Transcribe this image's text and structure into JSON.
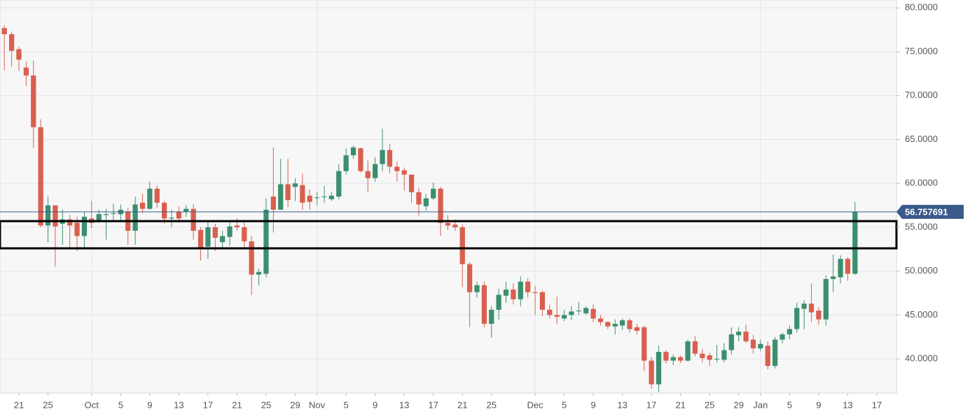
{
  "chart_data": {
    "type": "candlestick",
    "x": [
      -2,
      -1,
      0,
      1,
      2,
      3,
      4,
      5,
      6,
      7,
      8,
      9,
      10,
      11,
      12,
      13,
      14,
      15,
      16,
      17,
      18,
      19,
      20,
      21,
      22,
      23,
      24,
      25,
      26,
      27,
      28,
      29,
      30,
      31,
      32,
      33,
      34,
      35,
      36,
      37,
      38,
      39,
      40,
      41,
      42,
      43,
      44,
      45,
      46,
      47,
      48,
      49,
      50,
      51,
      52,
      53,
      54,
      55,
      56,
      57,
      58,
      59,
      60,
      61,
      62,
      63,
      64,
      65,
      66,
      67,
      68,
      69,
      70,
      71,
      72,
      73,
      74,
      75,
      76,
      77,
      78,
      79,
      80,
      81,
      82,
      83,
      84,
      85,
      86,
      87,
      88,
      89,
      90,
      91,
      92,
      93,
      94,
      95,
      96,
      97,
      98,
      99,
      100,
      101,
      102,
      103,
      104,
      105,
      106,
      107,
      108,
      109,
      110,
      111,
      112,
      113,
      114,
      115
    ],
    "open": [
      77.7,
      77.0,
      75.3,
      73.2,
      72.3,
      66.4,
      55.2,
      57.5,
      55.4,
      55.9,
      55.5,
      54.0,
      56.0,
      55.8,
      56.4,
      56.6,
      56.5,
      56.8,
      54.6,
      57.8,
      57.1,
      59.4,
      57.8,
      56.0,
      56.8,
      56.8,
      57.1,
      54.7,
      52.8,
      55.0,
      53.3,
      53.9,
      55.2,
      55.0,
      53.4,
      49.6,
      49.7,
      58.5,
      57.0,
      59.9,
      59.6,
      59.8,
      58.6,
      58.4,
      58.5,
      58.2,
      58.5,
      61.4,
      63.2,
      64.0,
      61.4,
      60.6,
      62.2,
      63.8,
      61.9,
      61.5,
      61.0,
      59.0,
      57.4,
      58.3,
      59.4,
      55.5,
      55.3,
      55.0,
      50.8,
      47.6,
      48.4,
      44.0,
      45.6,
      47.2,
      47.9,
      46.8,
      48.8,
      47.6,
      47.6,
      45.6,
      45.0,
      44.6,
      45.0,
      45.5,
      45.2,
      45.7,
      44.6,
      44.2,
      43.7,
      43.8,
      44.4,
      43.6,
      43.6,
      39.8,
      37.1,
      40.8,
      39.8,
      40.2,
      39.8,
      42.0,
      40.6,
      40.4,
      40.0,
      39.9,
      41.0,
      42.7,
      43.1,
      42.2,
      41.2,
      41.5,
      39.2,
      42.2,
      42.8,
      43.4,
      45.7,
      46.3,
      45.5,
      44.5,
      49.1,
      49.3,
      51.4,
      49.7
    ],
    "high": [
      78.0,
      77.3,
      75.6,
      73.9,
      74.0,
      67.3,
      58.5,
      57.5,
      57.0,
      56.4,
      56.2,
      56.8,
      58.0,
      57.0,
      57.1,
      57.7,
      57.6,
      57.2,
      58.5,
      58.8,
      60.2,
      59.8,
      58.0,
      57.0,
      57.4,
      57.5,
      57.6,
      55.0,
      55.6,
      55.4,
      54.6,
      55.8,
      56.0,
      55.6,
      54.0,
      50.3,
      58.3,
      64.1,
      62.8,
      62.8,
      60.6,
      61.1,
      59.3,
      59.0,
      59.7,
      59.0,
      62.2,
      64.0,
      64.3,
      64.1,
      62.6,
      63.0,
      66.2,
      64.5,
      62.5,
      61.8,
      61.0,
      59.5,
      58.8,
      60.1,
      59.6,
      56.4,
      55.9,
      55.3,
      51.0,
      48.8,
      48.8,
      46.0,
      48.0,
      48.8,
      48.6,
      49.4,
      49.2,
      48.3,
      47.8,
      46.2,
      47.1,
      45.6,
      46.0,
      46.5,
      46.0,
      46.2,
      45.0,
      44.3,
      44.5,
      44.6,
      44.6,
      44.0,
      43.8,
      40.2,
      41.5,
      41.0,
      40.5,
      40.4,
      42.2,
      42.6,
      41.1,
      40.7,
      41.6,
      41.8,
      43.6,
      43.6,
      43.9,
      42.7,
      42.2,
      42.0,
      42.5,
      43.0,
      43.8,
      46.4,
      46.7,
      48.6,
      45.9,
      49.5,
      51.9,
      51.8,
      51.6,
      57.9
    ],
    "low": [
      72.9,
      73.3,
      72.8,
      71.1,
      64.0,
      55.0,
      53.3,
      50.5,
      53.0,
      52.7,
      52.3,
      52.7,
      54.9,
      55.5,
      53.6,
      55.6,
      55.8,
      53.0,
      53.0,
      56.6,
      57.0,
      57.2,
      55.4,
      55.0,
      55.5,
      56.2,
      53.6,
      51.2,
      51.4,
      52.3,
      52.7,
      52.9,
      54.6,
      52.7,
      47.3,
      48.4,
      49.3,
      54.4,
      57.0,
      57.3,
      58.0,
      57.0,
      57.0,
      57.5,
      57.8,
      58.0,
      58.2,
      61.0,
      62.8,
      61.2,
      59.0,
      60.2,
      61.4,
      61.2,
      60.2,
      59.2,
      57.8,
      56.3,
      56.9,
      58.1,
      54.0,
      54.7,
      54.6,
      48.2,
      43.6,
      47.0,
      43.6,
      42.4,
      44.5,
      46.4,
      46.2,
      46.0,
      47.0,
      45.0,
      44.9,
      44.6,
      44.0,
      44.3,
      44.4,
      45.0,
      45.0,
      44.2,
      43.8,
      43.4,
      42.8,
      43.3,
      43.0,
      42.8,
      38.6,
      36.6,
      36.2,
      39.5,
      39.3,
      39.5,
      39.7,
      40.3,
      39.6,
      39.2,
      39.6,
      39.6,
      40.5,
      42.0,
      41.8,
      40.6,
      40.9,
      38.8,
      38.9,
      41.8,
      42.2,
      43.0,
      43.4,
      44.2,
      43.9,
      43.8,
      47.6,
      48.6,
      48.9,
      49.6
    ],
    "close": [
      77.0,
      75.1,
      74.1,
      72.3,
      66.4,
      55.2,
      57.5,
      55.1,
      55.9,
      55.2,
      54.0,
      56.2,
      55.5,
      56.5,
      56.5,
      56.6,
      57.0,
      54.6,
      57.6,
      57.1,
      59.4,
      57.8,
      56.0,
      56.1,
      56.0,
      57.1,
      54.6,
      52.7,
      55.0,
      53.8,
      54.0,
      55.1,
      55.0,
      53.4,
      49.6,
      49.9,
      57.0,
      57.0,
      59.9,
      58.1,
      60.0,
      57.8,
      57.9,
      58.4,
      58.5,
      58.6,
      61.4,
      63.2,
      64.1,
      61.4,
      60.6,
      62.2,
      63.8,
      61.9,
      61.4,
      61.0,
      59.0,
      57.6,
      58.3,
      59.4,
      55.5,
      55.2,
      55.0,
      50.8,
      47.6,
      48.4,
      44.0,
      45.6,
      47.3,
      47.9,
      46.8,
      48.8,
      47.6,
      47.5,
      45.6,
      45.0,
      44.8,
      45.0,
      45.4,
      45.5,
      45.8,
      44.6,
      44.2,
      43.7,
      44.0,
      44.4,
      43.4,
      43.2,
      39.8,
      37.1,
      40.8,
      39.8,
      40.2,
      39.8,
      42.0,
      40.6,
      40.1,
      39.9,
      40.0,
      41.0,
      42.8,
      43.1,
      42.0,
      41.2,
      41.7,
      39.2,
      42.2,
      42.8,
      43.4,
      45.8,
      46.3,
      45.3,
      44.5,
      49.1,
      49.4,
      51.4,
      49.7,
      56.757691
    ],
    "up_color": "#3b8f6f",
    "down_color": "#d95f4e",
    "xlim": [
      -2.6,
      120.7
    ],
    "xticks": [
      {
        "value": 0,
        "label": "21"
      },
      {
        "value": 4,
        "label": "25"
      },
      {
        "value": 10,
        "label": "Oct"
      },
      {
        "value": 14,
        "label": "5"
      },
      {
        "value": 18,
        "label": "9"
      },
      {
        "value": 22,
        "label": "13"
      },
      {
        "value": 26,
        "label": "17"
      },
      {
        "value": 30,
        "label": "21"
      },
      {
        "value": 34,
        "label": "25"
      },
      {
        "value": 38,
        "label": "29"
      },
      {
        "value": 41,
        "label": "Nov"
      },
      {
        "value": 45,
        "label": "5"
      },
      {
        "value": 49,
        "label": "9"
      },
      {
        "value": 53,
        "label": "13"
      },
      {
        "value": 57,
        "label": "17"
      },
      {
        "value": 61,
        "label": "21"
      },
      {
        "value": 65,
        "label": "25"
      },
      {
        "value": 71,
        "label": "Dec"
      },
      {
        "value": 75,
        "label": "5"
      },
      {
        "value": 79,
        "label": "9"
      },
      {
        "value": 83,
        "label": "13"
      },
      {
        "value": 87,
        "label": "17"
      },
      {
        "value": 91,
        "label": "21"
      },
      {
        "value": 95,
        "label": "25"
      },
      {
        "value": 99,
        "label": "29"
      },
      {
        "value": 102,
        "label": "Jan"
      },
      {
        "value": 106,
        "label": "5"
      },
      {
        "value": 110,
        "label": "9"
      },
      {
        "value": 114,
        "label": "13"
      },
      {
        "value": 118,
        "label": "17"
      }
    ],
    "x_grid": [
      10,
      41,
      71,
      102
    ],
    "ylim": [
      36.1,
      80.9
    ],
    "yticks": [
      {
        "value": 40,
        "label": "40.0000"
      },
      {
        "value": 45,
        "label": "45.0000"
      },
      {
        "value": 50,
        "label": "50.0000"
      },
      {
        "value": 55,
        "label": "55.0000"
      },
      {
        "value": 60,
        "label": "60.0000"
      },
      {
        "value": 65,
        "label": "65.0000"
      },
      {
        "value": 70,
        "label": "70.0000"
      },
      {
        "value": 75,
        "label": "75.0000"
      },
      {
        "value": 80,
        "label": "80.0000"
      }
    ],
    "last_price": 56.757691,
    "last_price_color": "#3a5a8c",
    "zone": {
      "low": 52.6,
      "high": 55.7
    },
    "grid": true
  }
}
